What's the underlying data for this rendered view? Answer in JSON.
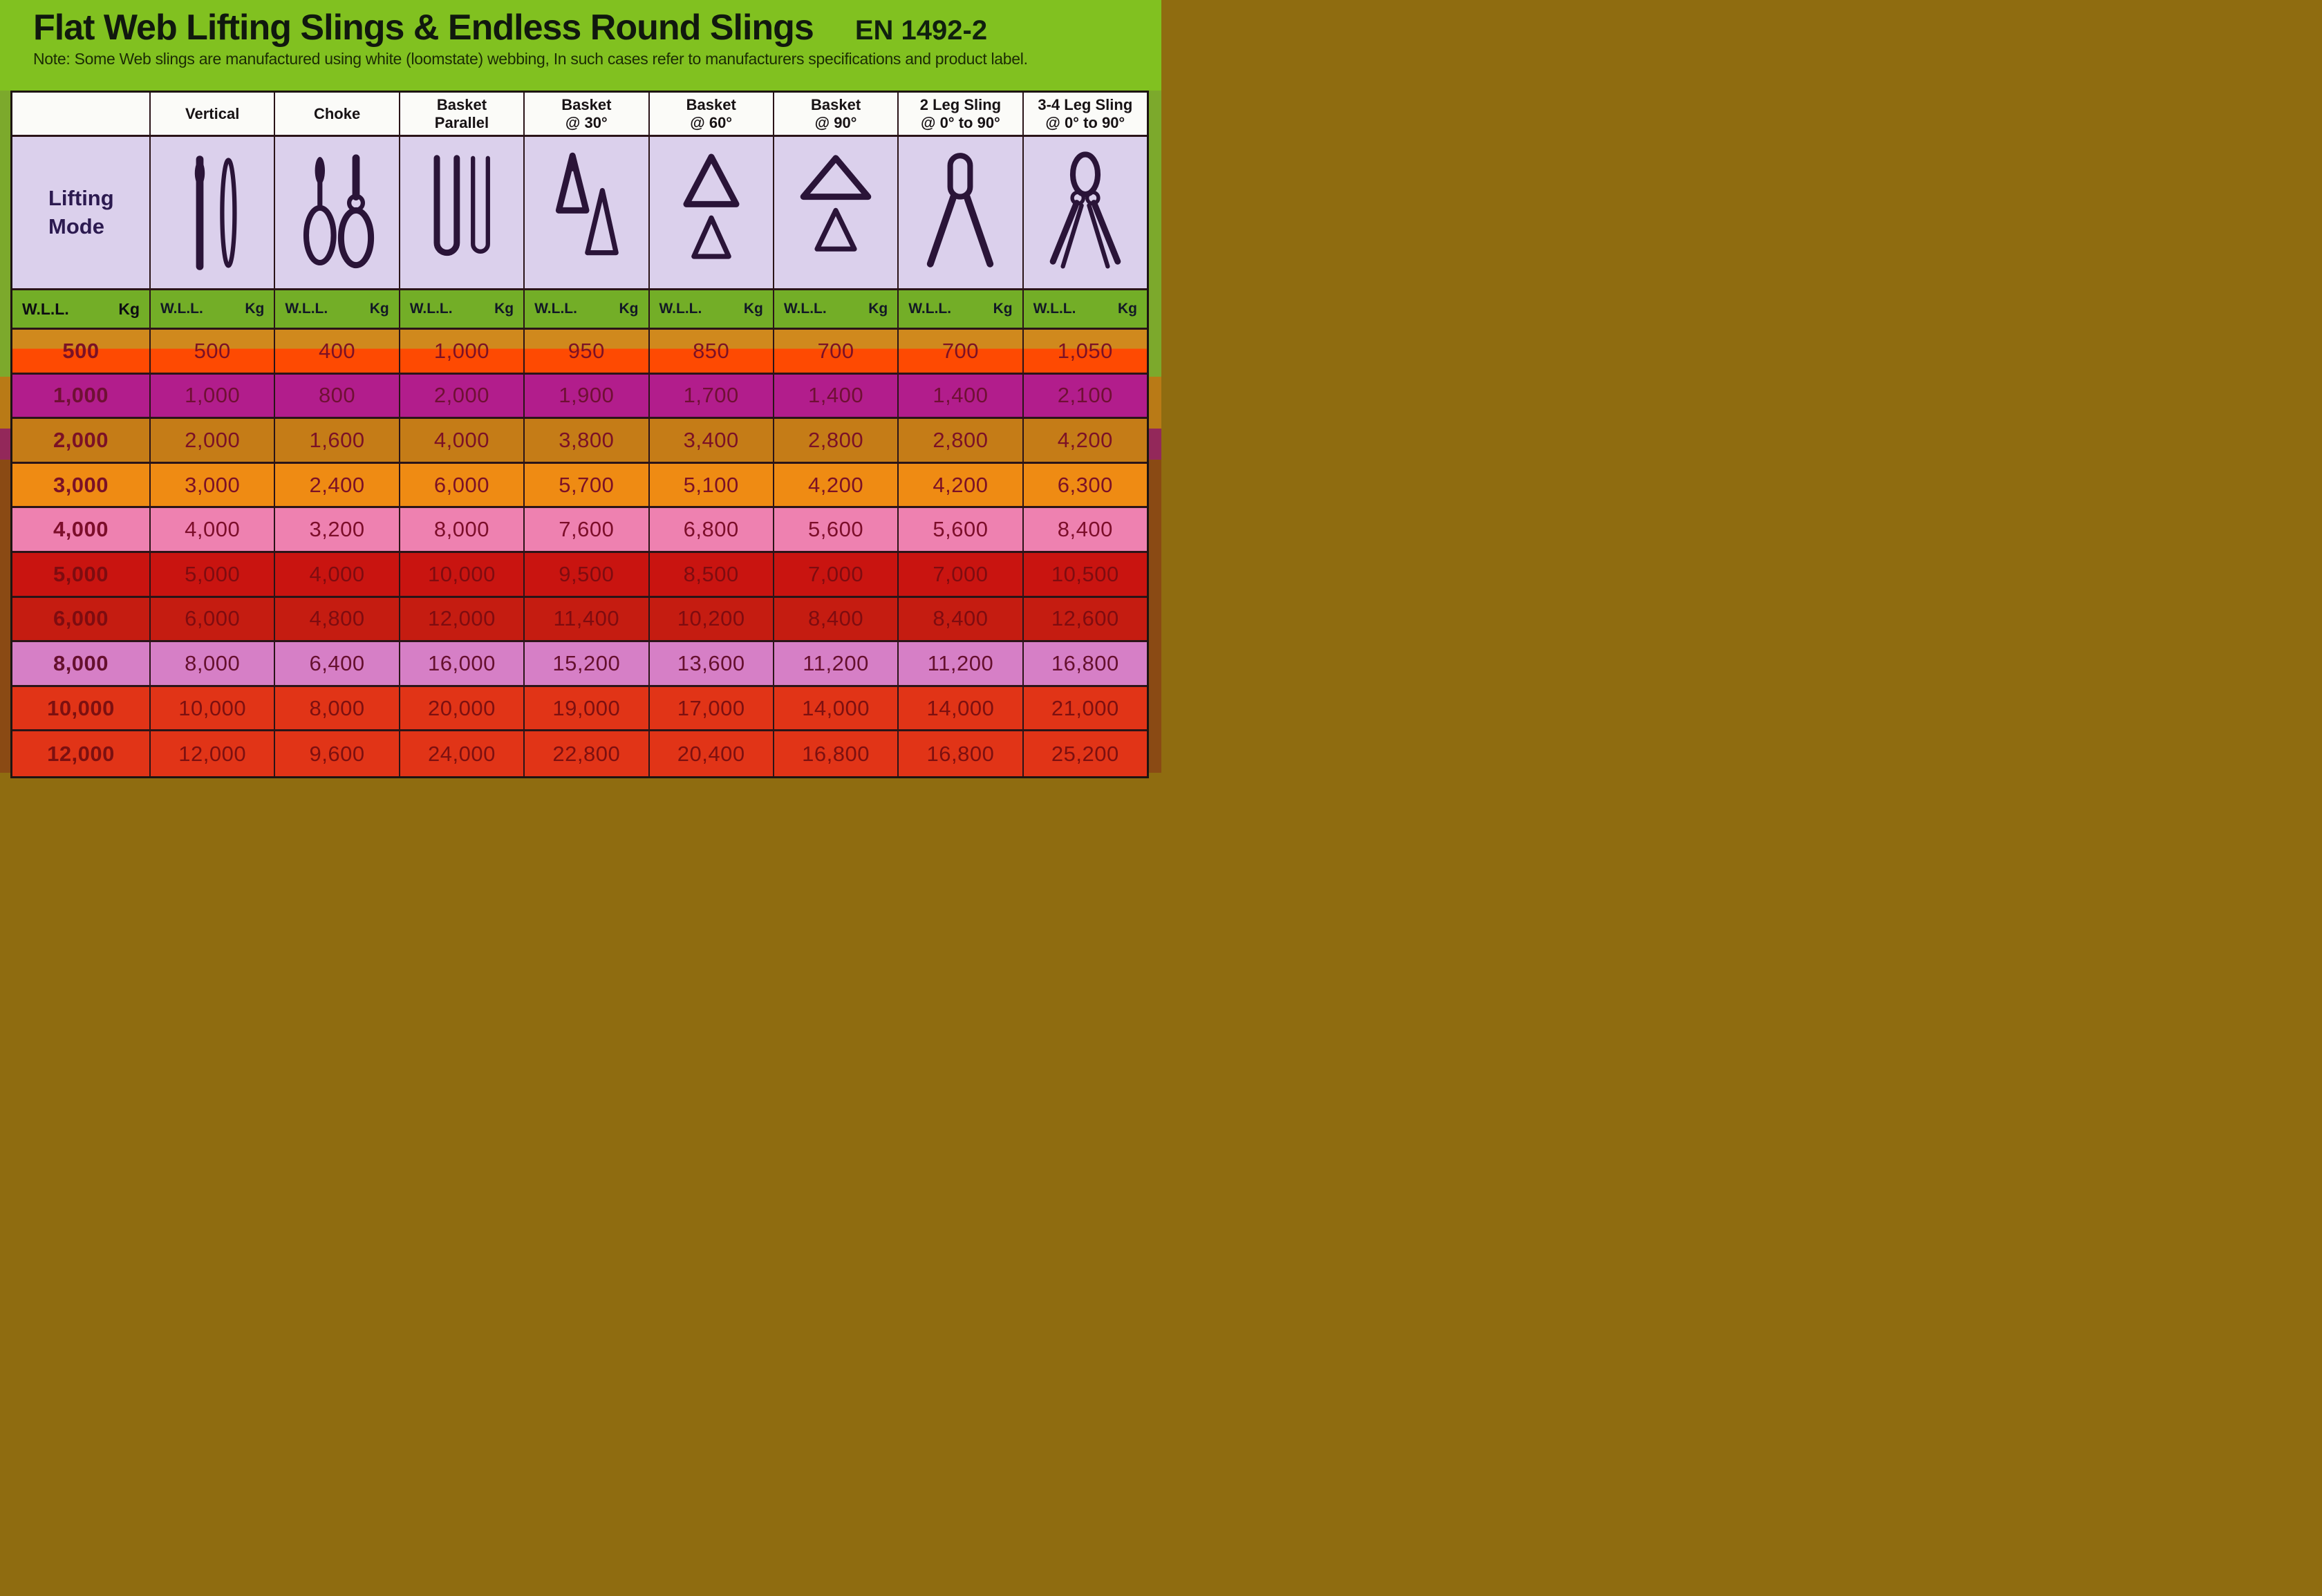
{
  "header": {
    "title": "Flat Web Lifting Slings & Endless Round Slings",
    "standard": "EN 1492-2",
    "note": "Note: Some Web slings are manufactured using white (loomstate) webbing, In such cases refer to manufacturers specifications and product label."
  },
  "table": {
    "lifting_mode_lines": [
      "Lifting",
      "Mode"
    ],
    "wll_label": "W.L.L.",
    "unit_label": "Kg",
    "columns": [
      {
        "id": "vertical",
        "lines": [
          "Vertical"
        ],
        "icon": "vertical-sling-icon"
      },
      {
        "id": "choke",
        "lines": [
          "Choke"
        ],
        "icon": "choke-sling-icon"
      },
      {
        "id": "basket-parallel",
        "lines": [
          "Basket",
          "Parallel"
        ],
        "icon": "basket-parallel-icon"
      },
      {
        "id": "basket-30",
        "lines": [
          "Basket",
          "@ 30°"
        ],
        "icon": "basket-30-icon"
      },
      {
        "id": "basket-60",
        "lines": [
          "Basket",
          "@ 60°"
        ],
        "icon": "basket-60-icon"
      },
      {
        "id": "basket-90",
        "lines": [
          "Basket",
          "@ 90°"
        ],
        "icon": "basket-90-icon"
      },
      {
        "id": "2-leg-sling",
        "lines": [
          "2 Leg Sling",
          "@ 0° to 90°"
        ],
        "icon": "two-leg-sling-icon"
      },
      {
        "id": "3-4-leg-sling",
        "lines": [
          "3-4 Leg Sling",
          "@ 0° to 90°"
        ],
        "icon": "multi-leg-sling-icon"
      }
    ],
    "row_styles": [
      {
        "bg": "#d0891d",
        "bg2": "#fe4a02",
        "fg": "#7b1126"
      },
      {
        "bg": "#b21d8c",
        "fg": "#6f1034"
      },
      {
        "bg": "#c57c17",
        "fg": "#7b1126"
      },
      {
        "bg": "#ef8b13",
        "fg": "#7b1126"
      },
      {
        "bg": "#ee81b0",
        "fg": "#7c0e2a"
      },
      {
        "bg": "#c91410",
        "fg": "#7e0c10"
      },
      {
        "bg": "#c51c11",
        "fg": "#7e0c10"
      },
      {
        "bg": "#d67fc6",
        "fg": "#65102e"
      },
      {
        "bg": "#e13417",
        "fg": "#7c1010"
      },
      {
        "bg": "#e13417",
        "fg": "#7c1010"
      }
    ]
  },
  "chart_data": {
    "type": "table",
    "title": "Flat Web Lifting Slings & Endless Round Slings (EN 1492-2)",
    "unit": "Kg",
    "columns": [
      "W.L.L.",
      "Vertical",
      "Choke",
      "Basket Parallel",
      "Basket @ 30°",
      "Basket @ 60°",
      "Basket @ 90°",
      "2 Leg Sling @ 0° to 90°",
      "3-4 Leg Sling @ 0° to 90°"
    ],
    "rows": [
      [
        "500",
        "500",
        "400",
        "1,000",
        "950",
        "850",
        "700",
        "700",
        "1,050"
      ],
      [
        "1,000",
        "1,000",
        "800",
        "2,000",
        "1,900",
        "1,700",
        "1,400",
        "1,400",
        "2,100"
      ],
      [
        "2,000",
        "2,000",
        "1,600",
        "4,000",
        "3,800",
        "3,400",
        "2,800",
        "2,800",
        "4,200"
      ],
      [
        "3,000",
        "3,000",
        "2,400",
        "6,000",
        "5,700",
        "5,100",
        "4,200",
        "4,200",
        "6,300"
      ],
      [
        "4,000",
        "4,000",
        "3,200",
        "8,000",
        "7,600",
        "6,800",
        "5,600",
        "5,600",
        "8,400"
      ],
      [
        "5,000",
        "5,000",
        "4,000",
        "10,000",
        "9,500",
        "8,500",
        "7,000",
        "7,000",
        "10,500"
      ],
      [
        "6,000",
        "6,000",
        "4,800",
        "12,000",
        "11,400",
        "10,200",
        "8,400",
        "8,400",
        "12,600"
      ],
      [
        "8,000",
        "8,000",
        "6,400",
        "16,000",
        "15,200",
        "13,600",
        "11,200",
        "11,200",
        "16,800"
      ],
      [
        "10,000",
        "10,000",
        "8,000",
        "20,000",
        "19,000",
        "17,000",
        "14,000",
        "14,000",
        "21,000"
      ],
      [
        "12,000",
        "12,000",
        "9,600",
        "24,000",
        "22,800",
        "20,400",
        "16,800",
        "16,800",
        "25,200"
      ]
    ]
  },
  "colors": {
    "title_band": "#81c120",
    "header_row_bg": "#fbfbf8",
    "lifting_mode_bg": "#dbd0ec",
    "wll_row_bg": "#73ae27",
    "grid_line": "#2a1418",
    "icon_color": "#2a1438",
    "bottom_band": "#8f6c10"
  }
}
